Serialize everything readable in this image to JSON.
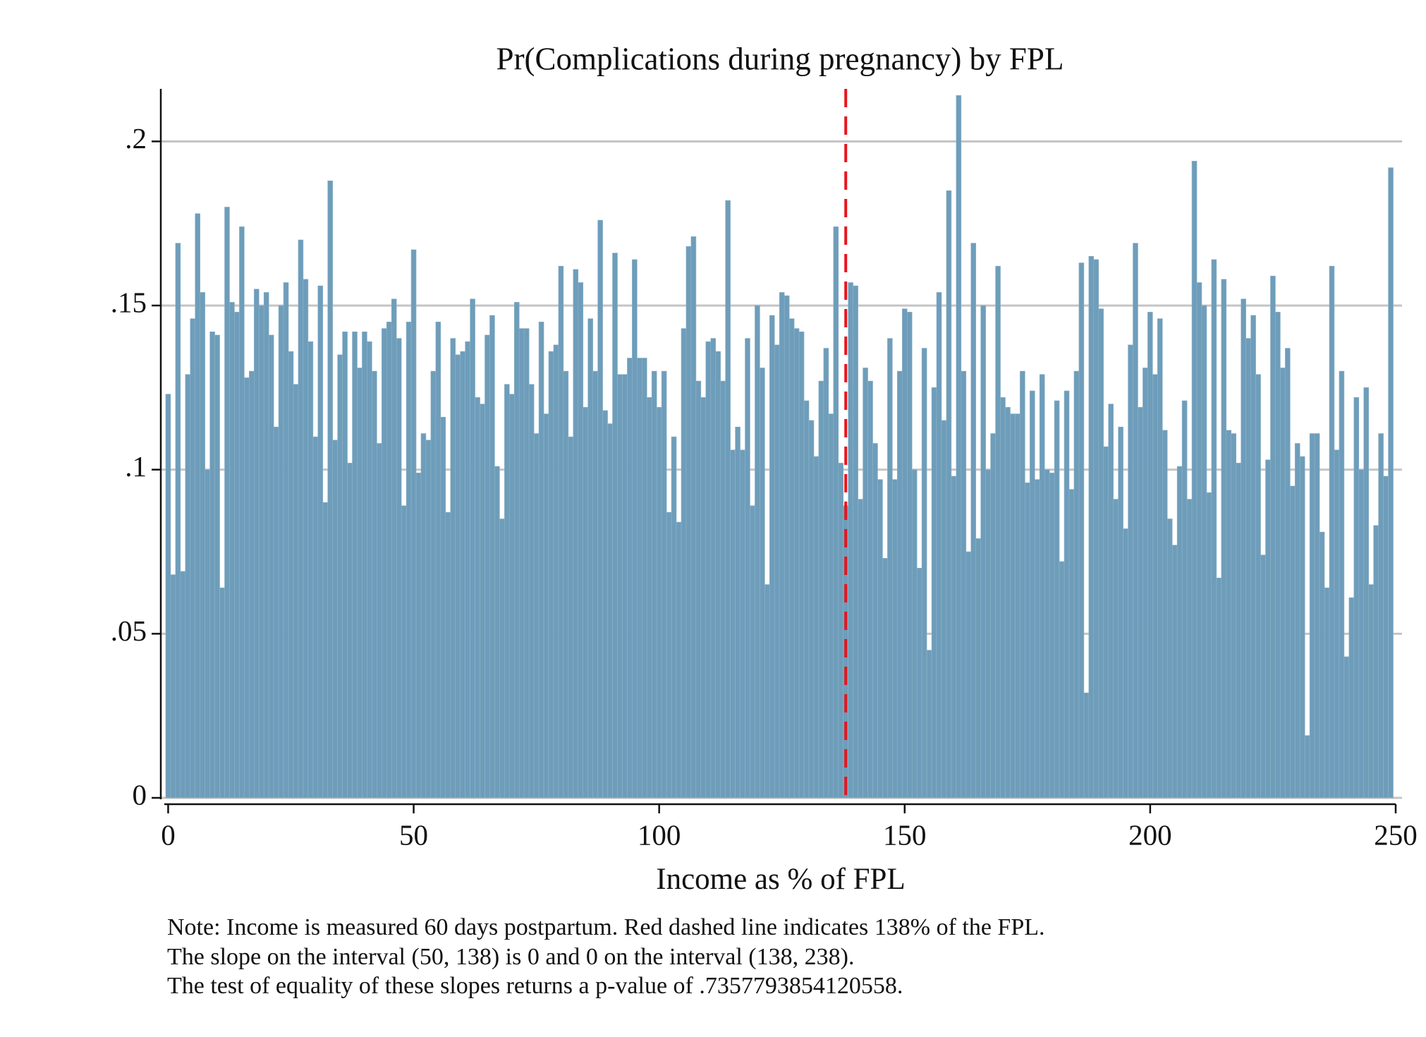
{
  "chart_data": {
    "type": "bar",
    "title": "Pr(Complications during pregnancy) by FPL",
    "x_label": "Income as % of FPL",
    "notes": [
      "Note: Income is measured 60 days postpartum. Red dashed line indicates 138% of the FPL.",
      "The slope on the interval (50, 138) is 0 and 0 on the interval (138, 238).",
      "The test of equality of these slopes returns a p-value of .7357793854120558."
    ],
    "color": "#6e9dba",
    "reference_line": {
      "x": 138,
      "color": "#e8141c"
    },
    "grid": true,
    "xlim": [
      -1.5,
      250
    ],
    "ylim": [
      0,
      0.216
    ],
    "xticks": [
      0,
      50,
      100,
      150,
      200,
      250
    ],
    "yticks": [
      0,
      {
        "value": 0.05,
        "label": ".05"
      },
      {
        "value": 0.1,
        "label": ".1"
      },
      {
        "value": 0.15,
        "label": ".15"
      },
      {
        "value": 0.2,
        "label": ".2"
      }
    ],
    "x": [
      0,
      1,
      2,
      3,
      4,
      5,
      6,
      7,
      8,
      9,
      10,
      11,
      12,
      13,
      14,
      15,
      16,
      17,
      18,
      19,
      20,
      21,
      22,
      23,
      24,
      25,
      26,
      27,
      28,
      29,
      30,
      31,
      32,
      33,
      34,
      35,
      36,
      37,
      38,
      39,
      40,
      41,
      42,
      43,
      44,
      45,
      46,
      47,
      48,
      49,
      50,
      51,
      52,
      53,
      54,
      55,
      56,
      57,
      58,
      59,
      60,
      61,
      62,
      63,
      64,
      65,
      66,
      67,
      68,
      69,
      70,
      71,
      72,
      73,
      74,
      75,
      76,
      77,
      78,
      79,
      80,
      81,
      82,
      83,
      84,
      85,
      86,
      87,
      88,
      89,
      90,
      91,
      92,
      93,
      94,
      95,
      96,
      97,
      98,
      99,
      100,
      101,
      102,
      103,
      104,
      105,
      106,
      107,
      108,
      109,
      110,
      111,
      112,
      113,
      114,
      115,
      116,
      117,
      118,
      119,
      120,
      121,
      122,
      123,
      124,
      125,
      126,
      127,
      128,
      129,
      130,
      131,
      132,
      133,
      134,
      135,
      136,
      137,
      138,
      139,
      140,
      141,
      142,
      143,
      144,
      145,
      146,
      147,
      148,
      149,
      150,
      151,
      152,
      153,
      154,
      155,
      156,
      157,
      158,
      159,
      160,
      161,
      162,
      163,
      164,
      165,
      166,
      167,
      168,
      169,
      170,
      171,
      172,
      173,
      174,
      175,
      176,
      177,
      178,
      179,
      180,
      181,
      182,
      183,
      184,
      185,
      186,
      187,
      188,
      189,
      190,
      191,
      192,
      193,
      194,
      195,
      196,
      197,
      198,
      199,
      200,
      201,
      202,
      203,
      204,
      205,
      206,
      207,
      208,
      209,
      210,
      211,
      212,
      213,
      214,
      215,
      216,
      217,
      218,
      219,
      220,
      221,
      222,
      223,
      224,
      225,
      226,
      227,
      228,
      229,
      230,
      231,
      232,
      233,
      234,
      235,
      236,
      237,
      238,
      239,
      240,
      241,
      242,
      243,
      244,
      245,
      246,
      247,
      248,
      249
    ],
    "values": [
      0.123,
      0.068,
      0.169,
      0.069,
      0.129,
      0.146,
      0.178,
      0.154,
      0.1,
      0.142,
      0.141,
      0.064,
      0.18,
      0.151,
      0.148,
      0.174,
      0.128,
      0.13,
      0.155,
      0.15,
      0.154,
      0.141,
      0.113,
      0.15,
      0.157,
      0.136,
      0.126,
      0.17,
      0.158,
      0.139,
      0.11,
      0.156,
      0.09,
      0.188,
      0.109,
      0.135,
      0.142,
      0.102,
      0.142,
      0.131,
      0.142,
      0.139,
      0.13,
      0.108,
      0.143,
      0.145,
      0.152,
      0.14,
      0.089,
      0.145,
      0.167,
      0.099,
      0.111,
      0.109,
      0.13,
      0.145,
      0.116,
      0.087,
      0.14,
      0.135,
      0.136,
      0.139,
      0.152,
      0.122,
      0.12,
      0.141,
      0.147,
      0.101,
      0.085,
      0.126,
      0.123,
      0.151,
      0.143,
      0.143,
      0.126,
      0.111,
      0.145,
      0.117,
      0.136,
      0.138,
      0.162,
      0.13,
      0.11,
      0.161,
      0.157,
      0.119,
      0.146,
      0.13,
      0.176,
      0.118,
      0.114,
      0.166,
      0.129,
      0.129,
      0.134,
      0.164,
      0.134,
      0.134,
      0.122,
      0.13,
      0.119,
      0.13,
      0.087,
      0.11,
      0.084,
      0.143,
      0.168,
      0.171,
      0.127,
      0.122,
      0.139,
      0.14,
      0.136,
      0.127,
      0.182,
      0.106,
      0.113,
      0.106,
      0.14,
      0.089,
      0.15,
      0.131,
      0.065,
      0.147,
      0.138,
      0.154,
      0.153,
      0.146,
      0.143,
      0.142,
      0.121,
      0.115,
      0.104,
      0.127,
      0.137,
      0.117,
      0.174,
      0.102,
      0.089,
      0.157,
      0.156,
      0.091,
      0.131,
      0.127,
      0.108,
      0.097,
      0.073,
      0.14,
      0.097,
      0.13,
      0.149,
      0.148,
      0.1,
      0.07,
      0.137,
      0.045,
      0.125,
      0.154,
      0.115,
      0.185,
      0.098,
      0.214,
      0.13,
      0.075,
      0.169,
      0.079,
      0.15,
      0.1,
      0.111,
      0.162,
      0.122,
      0.119,
      0.117,
      0.117,
      0.13,
      0.096,
      0.124,
      0.097,
      0.129,
      0.1,
      0.099,
      0.121,
      0.072,
      0.124,
      0.094,
      0.13,
      0.163,
      0.032,
      0.165,
      0.164,
      0.149,
      0.107,
      0.12,
      0.091,
      0.113,
      0.082,
      0.138,
      0.169,
      0.119,
      0.131,
      0.148,
      0.129,
      0.146,
      0.112,
      0.085,
      0.077,
      0.101,
      0.121,
      0.091,
      0.194,
      0.157,
      0.15,
      0.093,
      0.164,
      0.067,
      0.158,
      0.112,
      0.111,
      0.102,
      0.152,
      0.14,
      0.147,
      0.129,
      0.074,
      0.103,
      0.159,
      0.148,
      0.131,
      0.137,
      0.095,
      0.108,
      0.104,
      0.019,
      0.111,
      0.111,
      0.081,
      0.064,
      0.162,
      0.106,
      0.13,
      0.043,
      0.061,
      0.122,
      0.1,
      0.125,
      0.065,
      0.083,
      0.111,
      0.098,
      0.192
    ]
  }
}
